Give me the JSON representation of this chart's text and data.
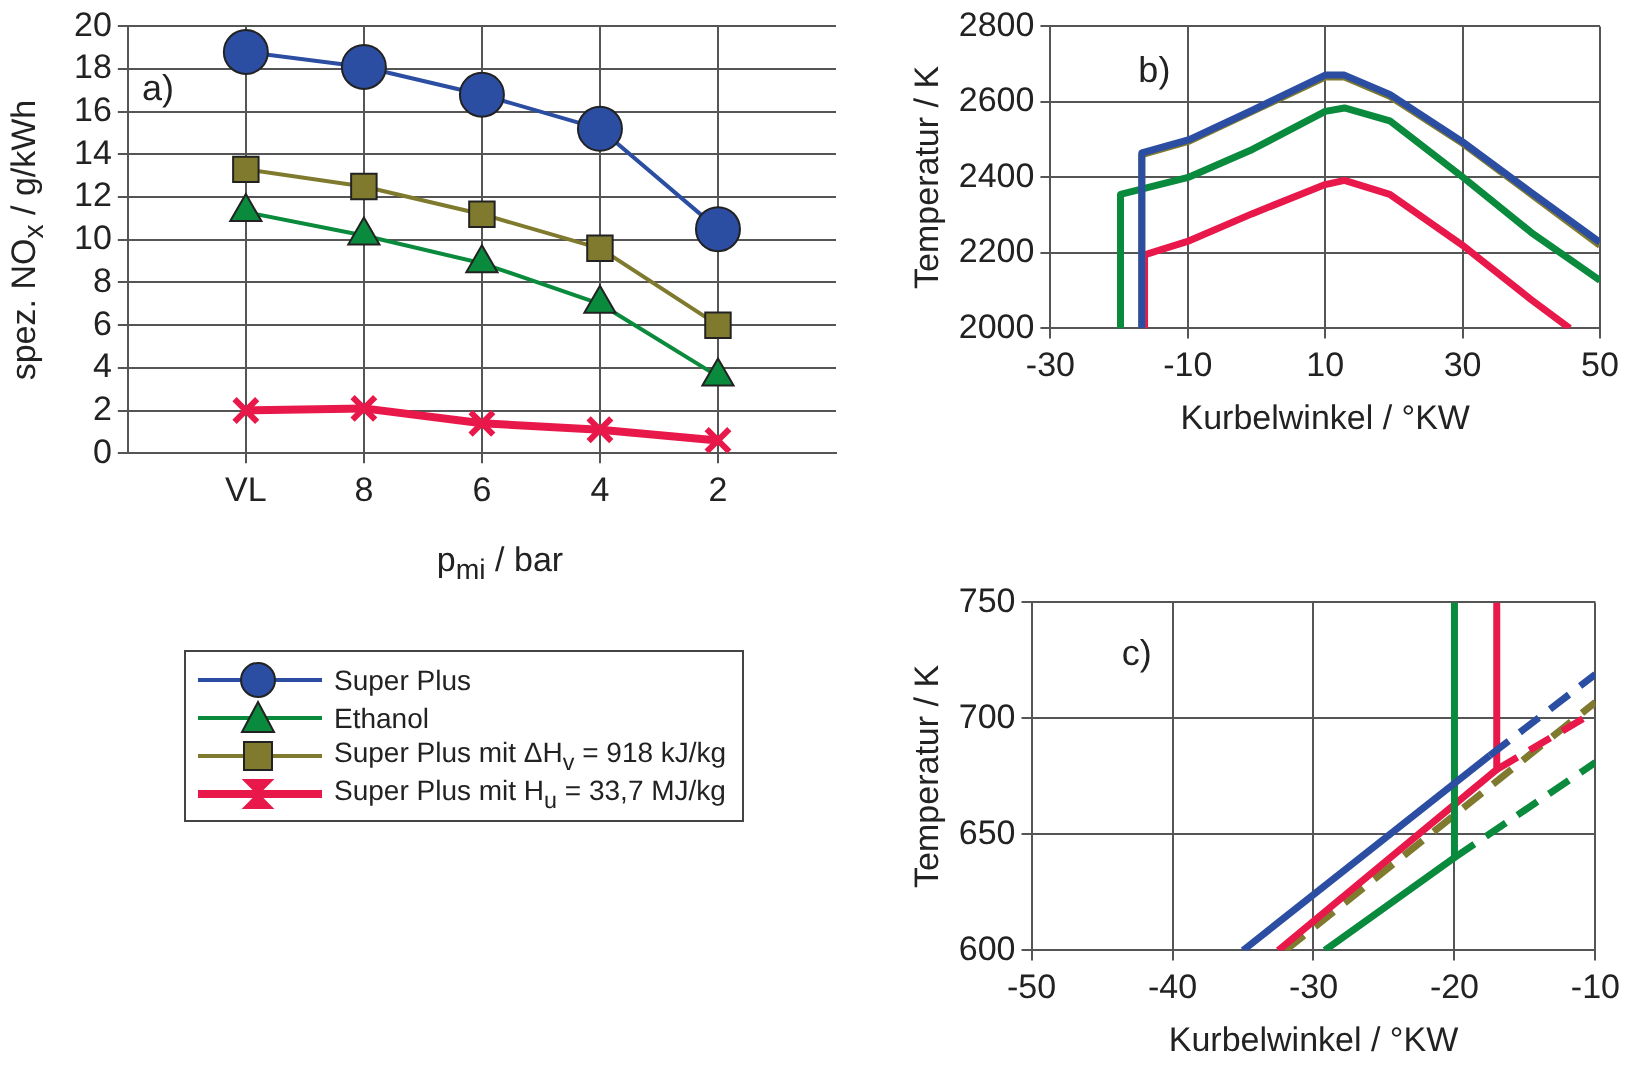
{
  "chart_data": [
    {
      "type": "line",
      "xlabel": "p$_{mi}$ / bar",
      "ylabel": "spez. NO$_{x}$ / g/kWh",
      "annotations": [
        "a)"
      ],
      "categories": [
        "VL",
        "8",
        "6",
        "4",
        "2"
      ],
      "ylim": [
        0,
        20
      ],
      "yticks": [
        0,
        2,
        4,
        6,
        8,
        10,
        12,
        14,
        16,
        18,
        20
      ],
      "grid": true,
      "legend": "bottom",
      "series": [
        {
          "name": "Super Plus",
          "color": "#2b4ea2",
          "marker": "circle",
          "values": [
            18.8,
            18.1,
            16.8,
            15.2,
            10.5
          ]
        },
        {
          "name": "Ethanol",
          "color": "#0a8a3c",
          "marker": "triangle",
          "values": [
            11.3,
            10.2,
            8.9,
            7.0,
            3.6
          ]
        },
        {
          "name": "Super Plus mit ΔH$_{v}$ = 918 kJ/kg",
          "color": "#7f7a2e",
          "marker": "square",
          "values": [
            13.3,
            12.5,
            11.2,
            9.6,
            6.0
          ]
        },
        {
          "name": "Super Plus mit H$_{u}$ = 33,7 MJ/kg",
          "color": "#e8194a",
          "marker": "cross",
          "values": [
            2.0,
            2.1,
            1.4,
            1.1,
            0.6
          ]
        }
      ]
    },
    {
      "type": "line",
      "xlabel": "Kurbelwinkel / °KW",
      "ylabel": "Temperatur / K",
      "annotations": [
        "b)"
      ],
      "xlim": [
        -30,
        50
      ],
      "xticks": [
        -30,
        -10,
        10,
        30,
        50
      ],
      "ylim": [
        2000,
        2800
      ],
      "yticks": [
        2000,
        2200,
        2400,
        2600,
        2800
      ],
      "grid": true,
      "series": [
        {
          "color": "#2b4ea2",
          "x": [
            -16.7,
            -16.7,
            -9.8,
            -0.6,
            10,
            12.8,
            19.4,
            30,
            40,
            50
          ],
          "values": [
            2000,
            2465,
            2500,
            2578,
            2671,
            2671,
            2620,
            2494,
            2360,
            2228
          ]
        },
        {
          "color": "#0a8a3c",
          "x": [
            -19.8,
            -19.8,
            -9.8,
            -0.6,
            10,
            12.8,
            19.4,
            30,
            40,
            50
          ],
          "values": [
            2000,
            2355,
            2401,
            2474,
            2575,
            2584,
            2550,
            2401,
            2254,
            2127
          ]
        },
        {
          "color": "#7f7a2e",
          "x": [
            -16.7,
            -16.7,
            -9.8,
            -0.6,
            10,
            12.8,
            19.4,
            30,
            40,
            50
          ],
          "values": [
            2000,
            2460,
            2496,
            2575,
            2666,
            2666,
            2615,
            2490,
            2355,
            2220
          ]
        },
        {
          "color": "#e8194a",
          "x": [
            -16.3,
            -16.3,
            -9.8,
            -0.6,
            10,
            12.8,
            19.4,
            30,
            40,
            45.6
          ],
          "values": [
            2000,
            2195,
            2232,
            2304,
            2381,
            2392,
            2355,
            2220,
            2076,
            2000
          ]
        }
      ]
    },
    {
      "type": "line",
      "xlabel": "Kurbelwinkel / °KW",
      "ylabel": "Temperatur / K",
      "annotations": [
        "c)"
      ],
      "xlim": [
        -50,
        -10
      ],
      "xticks": [
        -50,
        -40,
        -30,
        -20,
        -10
      ],
      "ylim": [
        600,
        750
      ],
      "yticks": [
        600,
        650,
        700,
        750
      ],
      "grid": true,
      "series": [
        {
          "color": "#2b4ea2",
          "line_style": "solid",
          "x": [
            -35,
            -17.5
          ],
          "values": [
            600,
            684
          ]
        },
        {
          "color": "#2b4ea2",
          "line_style": "dashed",
          "x": [
            -17.5,
            -10
          ],
          "values": [
            684,
            719
          ]
        },
        {
          "color": "#0a8a3c",
          "line_style": "solid",
          "x": [
            -29.2,
            -20,
            -20
          ],
          "values": [
            600,
            640,
            750
          ]
        },
        {
          "color": "#0a8a3c",
          "line_style": "dashed",
          "x": [
            -20,
            -10
          ],
          "values": [
            640,
            681
          ]
        },
        {
          "color": "#e8194a",
          "line_style": "solid",
          "x": [
            -32.5,
            -17,
            -17
          ],
          "values": [
            600,
            678,
            750
          ]
        },
        {
          "color": "#e8194a",
          "line_style": "dashed",
          "x": [
            -17,
            -10
          ],
          "values": [
            678,
            703
          ]
        },
        {
          "color": "#7f7a2e",
          "line_style": "dashed",
          "x": [
            -32,
            -10
          ],
          "values": [
            600,
            707
          ]
        }
      ]
    }
  ]
}
